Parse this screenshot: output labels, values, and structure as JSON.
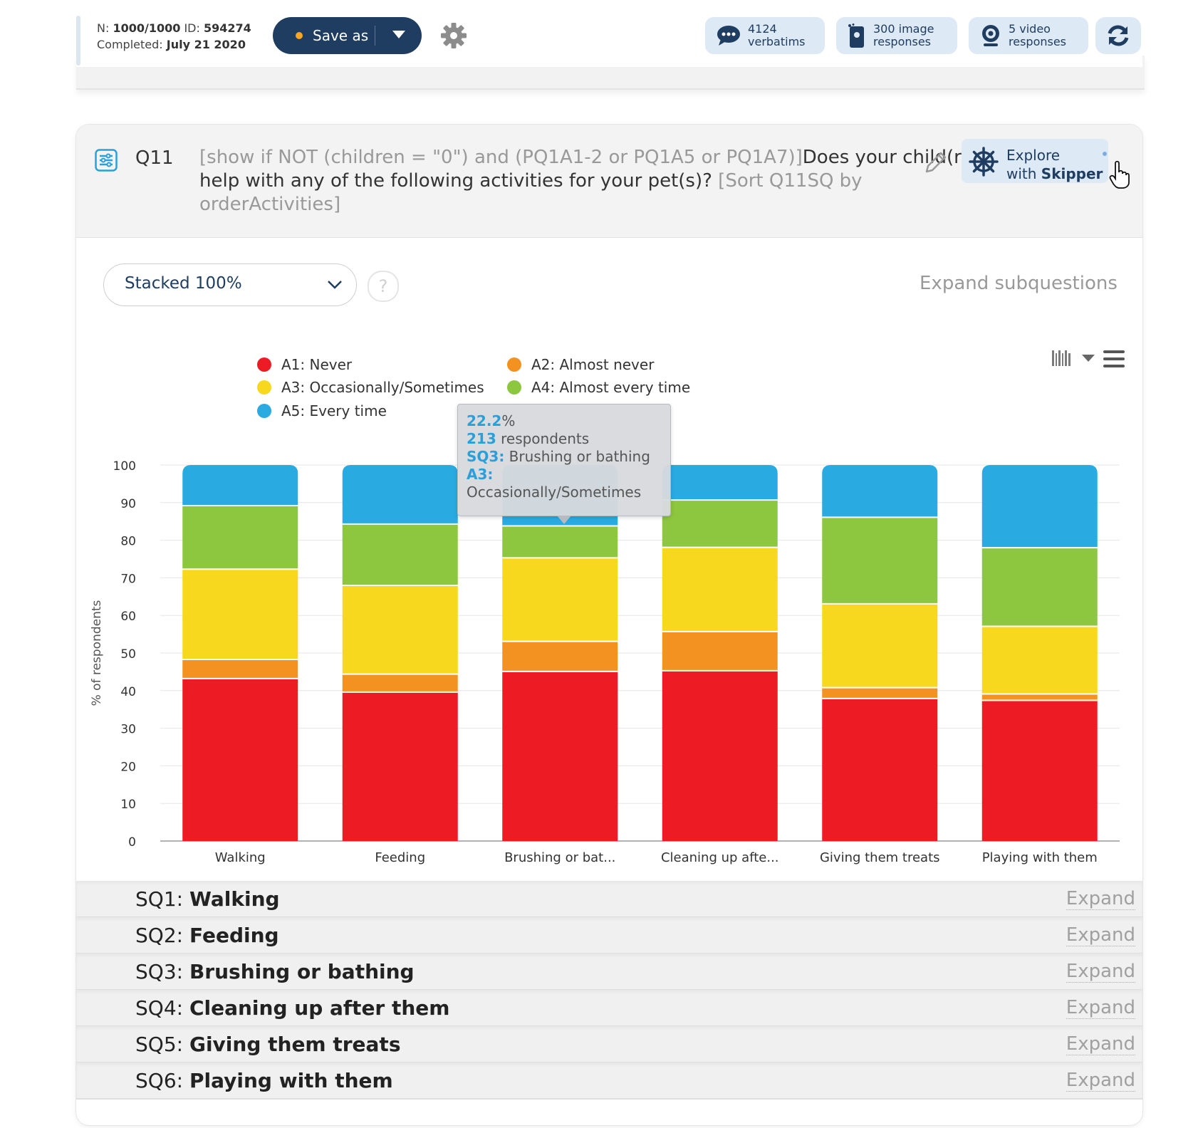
{
  "header": {
    "n_label": "N:",
    "n_value": "1000/1000",
    "id_label": "ID:",
    "id_value": "594274",
    "completed_label": "Completed:",
    "completed_value": "July 21 2020",
    "save_label": "Save as",
    "pills": [
      {
        "line1": "4124",
        "line2": "verbatims",
        "icon": "chat-bubble-icon"
      },
      {
        "line1": "300 image",
        "line2": "responses",
        "icon": "image-phone-icon"
      },
      {
        "line1": "5 video",
        "line2": "responses",
        "icon": "webcam-icon"
      }
    ]
  },
  "question": {
    "code": "Q11",
    "meta_prefix": "[show if NOT (children = \"0\") and (PQ1A1-2 or PQ1A5 or PQ1A7)]",
    "text": "Does your child(ren) help with any of the following activities for your pet(s)?",
    "meta_suffix": " [Sort Q11SQ by orderActivities]",
    "explore_line1": "Explore",
    "explore_prefix": "with ",
    "explore_strong": "Skipper"
  },
  "controls": {
    "chart_type": "Stacked 100%",
    "help": "?",
    "expand_subquestions": "Expand subquestions"
  },
  "colors": {
    "A1": "#ed1c24",
    "A2": "#f39220",
    "A3": "#f8d81f",
    "A4": "#8dc63f",
    "A5": "#29aae1"
  },
  "chart_data": {
    "type": "bar",
    "stacked": "percent",
    "ylabel": "% of respondents",
    "ylim": [
      0,
      100
    ],
    "yticks": [
      0,
      10,
      20,
      30,
      40,
      50,
      60,
      70,
      80,
      90,
      100
    ],
    "categories": [
      "Walking",
      "Feeding",
      "Brushing or bat...",
      "Cleaning up afte...",
      "Giving them treats",
      "Playing with them"
    ],
    "series": [
      {
        "key": "A1",
        "name": "A1: Never",
        "values": [
          43.2,
          39.6,
          45.1,
          45.3,
          37.9,
          37.4
        ]
      },
      {
        "key": "A2",
        "name": "A2: Almost never",
        "values": [
          5.1,
          4.8,
          8.0,
          10.4,
          2.9,
          1.7
        ]
      },
      {
        "key": "A3",
        "name": "A3: Occasionally/Sometimes",
        "values": [
          24.0,
          23.6,
          22.2,
          22.4,
          22.3,
          18.0
        ]
      },
      {
        "key": "A4",
        "name": "A4: Almost every time",
        "values": [
          16.9,
          16.3,
          8.5,
          12.6,
          23.0,
          20.9
        ]
      },
      {
        "key": "A5",
        "name": "A5: Every time",
        "values": [
          10.8,
          15.7,
          16.2,
          9.3,
          13.9,
          22.0
        ]
      }
    ]
  },
  "tooltip": {
    "percent": "22.2",
    "percent_suffix": "%",
    "count": "213",
    "count_suffix": " respondents",
    "sq_label": "SQ3:",
    "sq_name": " Brushing or bathing",
    "answer_label": "A3:",
    "answer_name": "Occasionally/Sometimes"
  },
  "subquestions": [
    {
      "code": "SQ1:",
      "name": "Walking",
      "action": "Expand"
    },
    {
      "code": "SQ2:",
      "name": "Feeding",
      "action": "Expand"
    },
    {
      "code": "SQ3:",
      "name": "Brushing or bathing",
      "action": "Expand"
    },
    {
      "code": "SQ4:",
      "name": "Cleaning up after them",
      "action": "Expand"
    },
    {
      "code": "SQ5:",
      "name": "Giving them treats",
      "action": "Expand"
    },
    {
      "code": "SQ6:",
      "name": "Playing with them",
      "action": "Expand"
    }
  ]
}
